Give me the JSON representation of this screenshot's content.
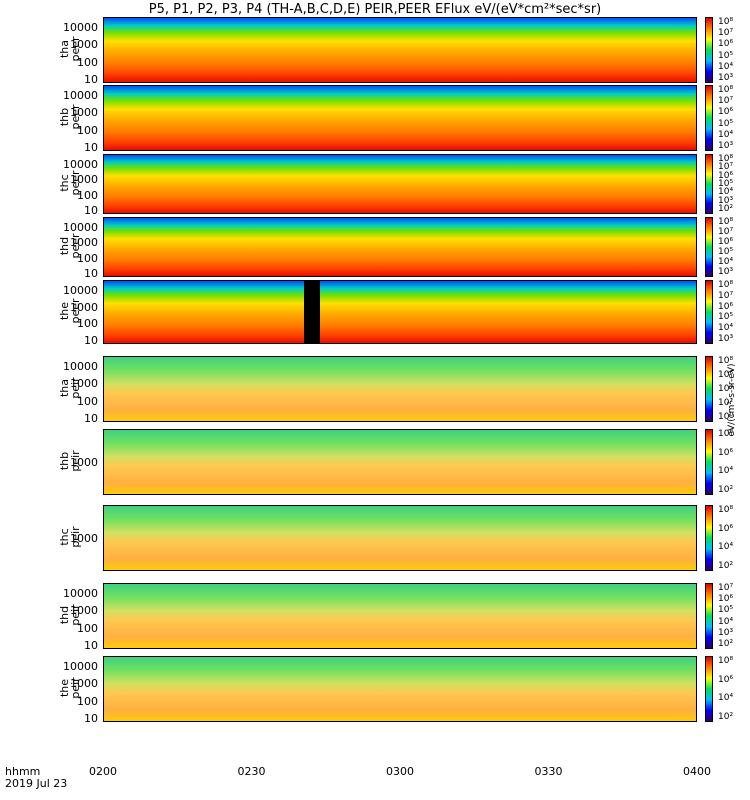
{
  "title": "P5, P1, P2, P3, P4 (TH-A,B,C,D,E) PEIR,PEER EFlux eV/(eV*cm²*sec*sr)",
  "time_axis": {
    "label": "hhmm",
    "date": "2019 Jul 23",
    "ticks": [
      "0200",
      "0230",
      "0300",
      "0330",
      "0400"
    ]
  },
  "colorbar_units": "eV/(cm²-s-sr-eV)",
  "panels": [
    {
      "id": "tha-peer",
      "label": "tha\npeer",
      "yticks": [
        "10000",
        "1000",
        "100",
        "10"
      ],
      "cticks": [
        "10⁸",
        "10⁷",
        "10⁶",
        "10⁵",
        "10⁴",
        "10³"
      ]
    },
    {
      "id": "thb-peer",
      "label": "thb\npeer",
      "yticks": [
        "10000",
        "1000",
        "100",
        "10"
      ],
      "cticks": [
        "10⁸",
        "10⁷",
        "10⁶",
        "10⁵",
        "10⁴",
        "10³"
      ]
    },
    {
      "id": "thc-peer",
      "label": "thc\npeer",
      "yticks": [
        "10000",
        "1000",
        "100",
        "10"
      ],
      "cticks": [
        "10⁸",
        "10⁷",
        "10⁶",
        "10⁵",
        "10⁴",
        "10³",
        "10²"
      ]
    },
    {
      "id": "thd-peer",
      "label": "thd\npeer",
      "yticks": [
        "10000",
        "1000",
        "100",
        "10"
      ],
      "cticks": [
        "10⁸",
        "10⁷",
        "10⁶",
        "10⁵",
        "10⁴",
        "10³"
      ]
    },
    {
      "id": "the-peer",
      "label": "the\npeer",
      "yticks": [
        "10000",
        "1000",
        "100",
        "10"
      ],
      "cticks": [
        "10⁸",
        "10⁷",
        "10⁶",
        "10⁵",
        "10⁴",
        "10³"
      ]
    },
    {
      "id": "tha-peir",
      "label": "tha\npeir",
      "yticks": [
        "10000",
        "1000",
        "100",
        "10"
      ],
      "cticks": [
        "10⁸",
        "10⁶",
        "10⁴",
        "10²",
        "10⁰"
      ]
    },
    {
      "id": "thb-peir",
      "label": "thb\npeir",
      "yticks": [
        "1000"
      ],
      "cticks": [
        "10⁸",
        "10⁶",
        "10⁴",
        "10²"
      ]
    },
    {
      "id": "thc-peir",
      "label": "thc\npeir",
      "yticks": [
        "1000"
      ],
      "cticks": [
        "10⁸",
        "10⁶",
        "10⁴",
        "10²"
      ]
    },
    {
      "id": "thd-peir",
      "label": "thd\npeir",
      "yticks": [
        "10000",
        "1000",
        "100",
        "10"
      ],
      "cticks": [
        "10⁷",
        "10⁶",
        "10⁵",
        "10⁴",
        "10³",
        "10²"
      ]
    },
    {
      "id": "the-peir",
      "label": "the\npeir",
      "yticks": [
        "10000",
        "1000",
        "100",
        "10"
      ],
      "cticks": [
        "10⁸",
        "10⁶",
        "10⁴",
        "10²"
      ]
    }
  ],
  "chart_data": {
    "type": "heatmap",
    "title": "P5, P1, P2, P3, P4 (TH-A,B,C,D,E) PEIR,PEER EFlux eV/(eV*cm²*sec*sr)",
    "xlabel": "hhmm",
    "x_ticks": [
      "0200",
      "0230",
      "0300",
      "0330",
      "0400"
    ],
    "x_range": [
      "2019-07-23 02:00",
      "2019-07-23 04:00"
    ],
    "y_scale": "log",
    "color_scale": "log",
    "series": [
      "tha peer",
      "thb peer",
      "thc peer",
      "thd peer",
      "the peer",
      "tha peir",
      "thb peir",
      "thc peir",
      "thd peir",
      "the peir"
    ]
  }
}
